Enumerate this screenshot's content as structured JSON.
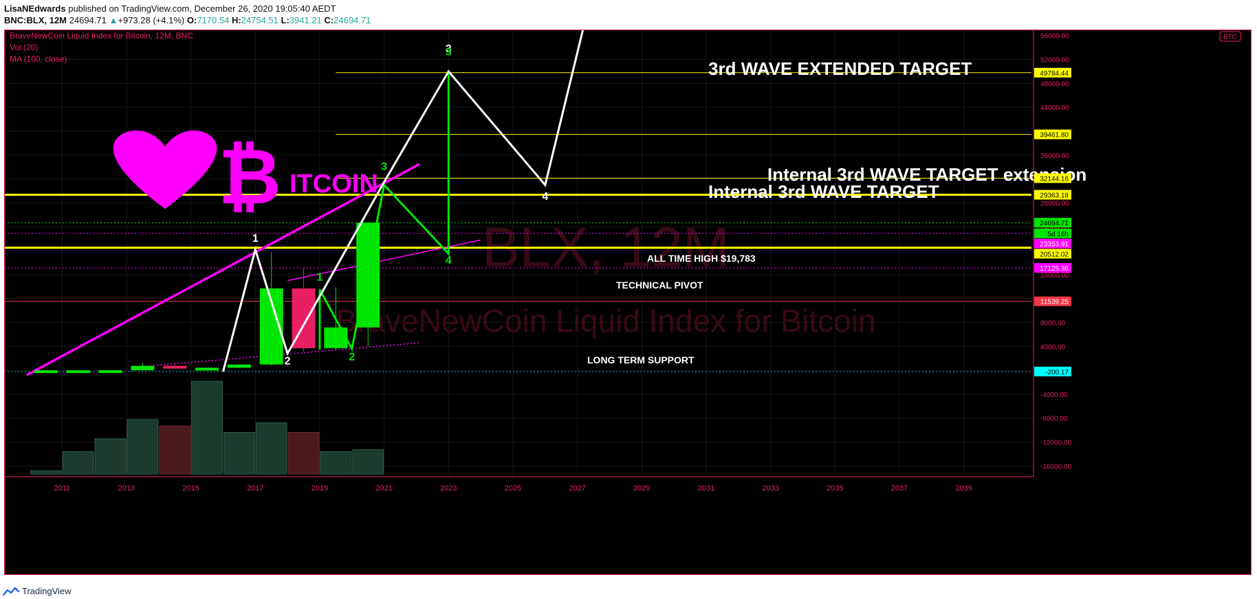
{
  "header": {
    "author": "LisaNEdwards",
    "published_text": "published on TradingView.com, December 26, 2020 19:05:40 AEDT"
  },
  "ohlc": {
    "symbol": "BNC:BLX, 12M",
    "last": "24694.71",
    "change_arrow": "▲",
    "change": "+973.28 (+4.1%)",
    "o_label": "O:",
    "o": "7170.54",
    "h_label": "H:",
    "h": "24754.51",
    "l_label": "L:",
    "l": "3941.21",
    "c_label": "C:",
    "c": "24694.71"
  },
  "legend": {
    "title": "BraveNewCoin Liquid Index for Bitcoin, 12M, BNC",
    "vol": "Vol (20)",
    "ma": "MA (100, close)"
  },
  "watermark": {
    "symbol": "BLX, 12M",
    "name": "BraveNewCoin Liquid Index for Bitcoin"
  },
  "logo": {
    "text": "ITCOIN",
    "color": "#ff00ff"
  },
  "annotations": {
    "extended_target": "3rd WAVE EXTENDED TARGET",
    "internal_extension": "Internal 3rd WAVE TARGET extension",
    "internal_target": "Internal 3rd WAVE TARGET",
    "ath": "ALL TIME HIGH $19,783",
    "pivot": "TECHNICAL PIVOT",
    "support": "LONG TERM SUPPORT"
  },
  "wave_labels": [
    {
      "text": "1",
      "color": "#ffffff",
      "x": 2017,
      "y": 21500
    },
    {
      "text": "2",
      "color": "#ffffff",
      "x": 2018,
      "y": 1000
    },
    {
      "text": "3",
      "color": "#ffffff",
      "x": 2023,
      "y": 53200
    },
    {
      "text": "3",
      "color": "#00e600",
      "x": 2023,
      "y": 52700
    },
    {
      "text": "3",
      "color": "#00e600",
      "x": 2021,
      "y": 33500
    },
    {
      "text": "1",
      "color": "#00e600",
      "x": 2019,
      "y": 15000
    },
    {
      "text": "2",
      "color": "#00e600",
      "x": 2020,
      "y": 1700
    },
    {
      "text": "4",
      "color": "#00e600",
      "x": 2023,
      "y": 17800
    },
    {
      "text": "4",
      "color": "#ffffff",
      "x": 2026,
      "y": 28500
    }
  ],
  "price_axis": {
    "ticks": [
      "52000.00",
      "48000.00",
      "44000.00",
      "40000.00",
      "36000.00",
      "32000.00",
      "28000.00",
      "24000.00",
      "20000.00",
      "16000.00",
      "12000.00",
      "8000.00",
      "4000.00",
      "0.00",
      "-4000.00",
      "-8000.00",
      "-12000.00",
      "-16000.00"
    ],
    "top_partial": "56000.00",
    "currency": "BTC",
    "badges": [
      {
        "text": "49784.44",
        "value": 49784.44,
        "bg": "#ffff00",
        "fg": "#000000"
      },
      {
        "text": "39461.80",
        "value": 39461.8,
        "bg": "#ffff00",
        "fg": "#000000"
      },
      {
        "text": "32144.16",
        "value": 32144.16,
        "bg": "#ffff00",
        "fg": "#000000"
      },
      {
        "text": "29363.18",
        "value": 29363.18,
        "bg": "#ffff00",
        "fg": "#000000"
      },
      {
        "text": "24694.71",
        "value": 24694.71,
        "bg": "#00e600",
        "fg": "#000000"
      },
      {
        "text": "5d 16h",
        "value": 22900,
        "bg": "#00e600",
        "fg": "#000000"
      },
      {
        "text": "23353.91",
        "value": 21200,
        "bg": "#ff00ff",
        "fg": "#ffffff"
      },
      {
        "text": "20512.02",
        "value": 19500,
        "bg": "#ffff00",
        "fg": "#000000"
      },
      {
        "text": "17125.36",
        "value": 17125.36,
        "bg": "#ff00ff",
        "fg": "#ffffff"
      },
      {
        "text": "11539.25",
        "value": 11539.25,
        "bg": "#f23645",
        "fg": "#ffffff"
      },
      {
        "text": "-200.17",
        "value": -200.17,
        "bg": "#00ffff",
        "fg": "#000000"
      }
    ]
  },
  "time_axis": {
    "labels": [
      "2011",
      "2013",
      "2015",
      "2017",
      "2019",
      "2021",
      "2023",
      "2025",
      "2027",
      "2029",
      "2031",
      "2033",
      "2035",
      "2037",
      "2039"
    ]
  },
  "colors": {
    "background": "#000000",
    "border": "#e91e63",
    "up": "#00e600",
    "down": "#e91e63",
    "target_line": "#ffff00",
    "trend_line": "#ff00ff",
    "wave_line": "#ffffff",
    "axis_text": "#e91e63"
  },
  "chart_data": {
    "type": "candlestick",
    "title": "BraveNewCoin Liquid Index for Bitcoin, 12M, BNC",
    "x_unit": "year",
    "y_unit": "USD",
    "ylim": [
      -17800,
      57000
    ],
    "xlim": [
      2009.2,
      2041.1
    ],
    "candles": [
      {
        "year": 2010,
        "open": 0,
        "high": 0.5,
        "low": 0,
        "close": 0.3
      },
      {
        "year": 2011,
        "open": 0.3,
        "high": 30,
        "low": 0.3,
        "close": 5
      },
      {
        "year": 2012,
        "open": 5,
        "high": 15,
        "low": 4,
        "close": 13
      },
      {
        "year": 2013,
        "open": 13,
        "high": 1150,
        "low": 13,
        "close": 750
      },
      {
        "year": 2014,
        "open": 750,
        "high": 950,
        "low": 300,
        "close": 320
      },
      {
        "year": 2015,
        "open": 320,
        "high": 470,
        "low": 170,
        "close": 430
      },
      {
        "year": 2016,
        "open": 430,
        "high": 980,
        "low": 360,
        "close": 970
      },
      {
        "year": 2017,
        "open": 970,
        "high": 19783,
        "low": 770,
        "close": 13700
      },
      {
        "year": 2018,
        "open": 13700,
        "high": 17100,
        "low": 3150,
        "close": 3700
      },
      {
        "year": 2019,
        "open": 3700,
        "high": 13900,
        "low": 3400,
        "close": 7170
      },
      {
        "year": 2020,
        "open": 7170.54,
        "high": 24754.51,
        "low": 3941.21,
        "close": 24694.71
      }
    ],
    "volume": [
      {
        "year": 2010,
        "value": 0.5,
        "up": true
      },
      {
        "year": 2011,
        "value": 3.5,
        "up": true
      },
      {
        "year": 2012,
        "value": 5.5,
        "up": true
      },
      {
        "year": 2013,
        "value": 8.5,
        "up": true
      },
      {
        "year": 2014,
        "value": 7.5,
        "up": false
      },
      {
        "year": 2015,
        "value": 14.5,
        "up": true
      },
      {
        "year": 2016,
        "value": 6.5,
        "up": true
      },
      {
        "year": 2017,
        "value": 8.0,
        "up": true
      },
      {
        "year": 2018,
        "value": 6.5,
        "up": false
      },
      {
        "year": 2019,
        "value": 3.5,
        "up": true
      },
      {
        "year": 2020,
        "value": 3.8,
        "up": true
      }
    ],
    "horizontal_lines": [
      {
        "value": 49784.44,
        "color": "#ffff00",
        "from": 2019.5,
        "width": 1
      },
      {
        "value": 39461.8,
        "color": "#ffff00",
        "from": 2019.5,
        "width": 1
      },
      {
        "value": 32144.16,
        "color": "#ffff00",
        "from": 2019.5,
        "width": 1
      },
      {
        "value": 29363.18,
        "color": "#ffff00",
        "from": 2009.2,
        "width": 3
      },
      {
        "value": 20512.02,
        "color": "#ffff00",
        "from": 2009.2,
        "width": 3
      },
      {
        "value": 24694.71,
        "color": "#00e600",
        "from": 2009.2,
        "width": 1,
        "dotted": true
      },
      {
        "value": 22900,
        "color": "#ff00ff",
        "from": 2009.2,
        "width": 1,
        "dotted": true
      },
      {
        "value": 17125.36,
        "color": "#ff00ff",
        "from": 2009.2,
        "width": 1,
        "dotted": true
      },
      {
        "value": 11539.25,
        "color": "#f23645",
        "from": 2009.2,
        "width": 1
      },
      {
        "value": -200.17,
        "color": "#00bcd4",
        "from": 2009.2,
        "width": 1,
        "dotted": true
      }
    ],
    "wave_path": [
      [
        2016,
        -200
      ],
      [
        2017,
        20200
      ],
      [
        2018,
        2800
      ],
      [
        2021,
        31500
      ],
      [
        2023,
        50000
      ],
      [
        2026,
        31000
      ],
      [
        2027.4,
        62000
      ]
    ],
    "wave_path_green": [
      [
        2019,
        3500
      ],
      [
        2019,
        13500
      ],
      [
        2020,
        3600
      ],
      [
        2021,
        31000
      ],
      [
        2023,
        19500
      ],
      [
        2023,
        50000
      ]
    ],
    "trend_line": [
      [
        2009.9,
        -800
      ],
      [
        2022.1,
        34500
      ]
    ],
    "pivot_line": [
      [
        2018.0,
        15000
      ],
      [
        2024.0,
        21800
      ]
    ],
    "support_line": [
      [
        2013.2,
        500
      ],
      [
        2022.1,
        4600
      ]
    ]
  }
}
